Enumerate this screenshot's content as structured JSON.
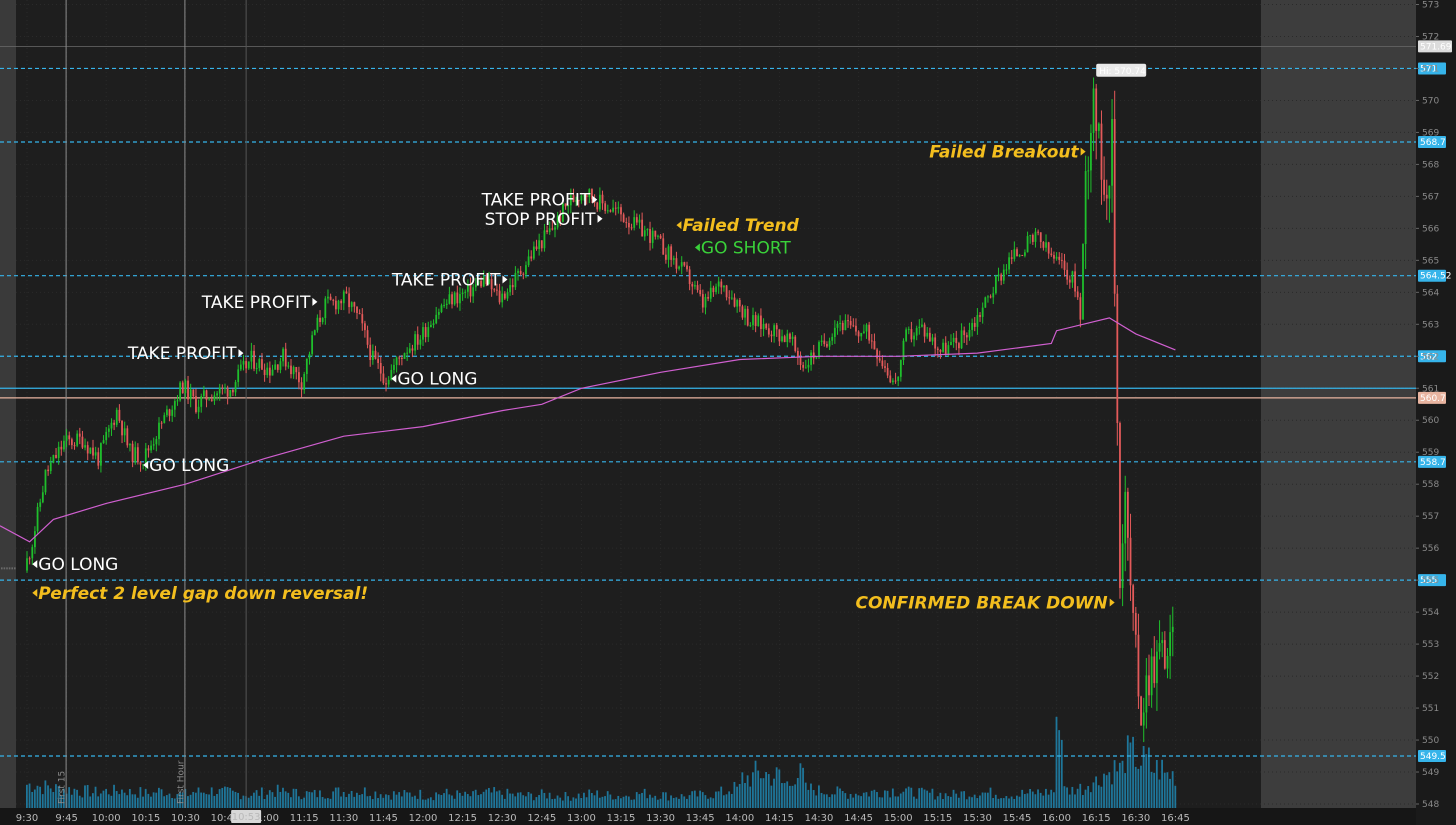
{
  "chart_data": {
    "type": "candlestick",
    "x_tick_labels": [
      "9:30",
      "9:45",
      "10:00",
      "10:15",
      "10:30",
      "10:45",
      "11:00",
      "11:15",
      "11:30",
      "11:45",
      "12:00",
      "12:15",
      "12:30",
      "12:45",
      "13:00",
      "13:15",
      "13:30",
      "13:45",
      "14:00",
      "14:15",
      "14:30",
      "14:45",
      "15:00",
      "15:15",
      "15:30",
      "15:45",
      "16:00",
      "16:15",
      "16:30",
      "16:45"
    ],
    "y_tick_labels": [
      "548",
      "549",
      "550",
      "551",
      "552",
      "553",
      "554",
      "555",
      "556",
      "557",
      "558",
      "559",
      "560",
      "561",
      "562",
      "563",
      "564",
      "565",
      "566",
      "567",
      "568",
      "569",
      "570",
      "571",
      "572",
      "573"
    ],
    "ylim": [
      548,
      573
    ],
    "current_time_label": "10:53",
    "vertical_marker_labels": [
      "First 15",
      "First Hour"
    ],
    "price_path": [
      [
        "9:30",
        555.3
      ],
      [
        "9:33",
        556.2
      ],
      [
        "9:38",
        558.3
      ],
      [
        "9:45",
        559.3
      ],
      [
        "9:52",
        559.4
      ],
      [
        "9:58",
        558.8
      ],
      [
        "10:05",
        560.3
      ],
      [
        "10:10",
        559.0
      ],
      [
        "10:15",
        558.8
      ],
      [
        "10:22",
        559.9
      ],
      [
        "10:30",
        561.1
      ],
      [
        "10:35",
        560.5
      ],
      [
        "10:40",
        560.8
      ],
      [
        "10:48",
        561.0
      ],
      [
        "10:52",
        561.5
      ],
      [
        "10:56",
        561.9
      ],
      [
        "11:03",
        561.6
      ],
      [
        "11:08",
        562.0
      ],
      [
        "11:15",
        561.2
      ],
      [
        "11:20",
        562.8
      ],
      [
        "11:24",
        563.6
      ],
      [
        "11:32",
        563.8
      ],
      [
        "11:37",
        563.1
      ],
      [
        "11:42",
        561.9
      ],
      [
        "11:47",
        561.3
      ],
      [
        "11:54",
        562.2
      ],
      [
        "12:00",
        562.6
      ],
      [
        "12:06",
        563.4
      ],
      [
        "12:12",
        563.8
      ],
      [
        "12:18",
        564.0
      ],
      [
        "12:24",
        564.4
      ],
      [
        "12:30",
        563.8
      ],
      [
        "12:35",
        564.3
      ],
      [
        "12:43",
        565.3
      ],
      [
        "12:50",
        566.0
      ],
      [
        "12:56",
        566.8
      ],
      [
        "13:02",
        567.2
      ],
      [
        "13:08",
        566.8
      ],
      [
        "13:15",
        566.5
      ],
      [
        "13:21",
        566.1
      ],
      [
        "13:27",
        565.8
      ],
      [
        "13:35",
        565.1
      ],
      [
        "13:42",
        564.4
      ],
      [
        "13:47",
        563.6
      ],
      [
        "13:54",
        564.3
      ],
      [
        "14:00",
        563.7
      ],
      [
        "14:05",
        563.1
      ],
      [
        "14:12",
        562.9
      ],
      [
        "14:20",
        562.5
      ],
      [
        "14:25",
        561.7
      ],
      [
        "14:32",
        562.3
      ],
      [
        "14:38",
        563.1
      ],
      [
        "14:44",
        562.8
      ],
      [
        "14:50",
        562.7
      ],
      [
        "14:56",
        561.7
      ],
      [
        "15:00",
        561.1
      ],
      [
        "15:04",
        562.6
      ],
      [
        "15:10",
        562.9
      ],
      [
        "15:17",
        562.2
      ],
      [
        "15:23",
        562.4
      ],
      [
        "15:30",
        563.1
      ],
      [
        "15:36",
        564.0
      ],
      [
        "15:42",
        564.9
      ],
      [
        "15:48",
        565.4
      ],
      [
        "15:54",
        565.7
      ],
      [
        "15:58",
        565.2
      ],
      [
        "16:03",
        564.8
      ],
      [
        "16:08",
        564.3
      ],
      [
        "16:10",
        563.2
      ],
      [
        "16:12",
        567.5
      ],
      [
        "16:15",
        570.5
      ],
      [
        "16:17",
        568.5
      ],
      [
        "16:20",
        567.3
      ],
      [
        "16:22",
        568.7
      ],
      [
        "16:25",
        555.5
      ],
      [
        "16:27",
        557.5
      ],
      [
        "16:30",
        553.5
      ],
      [
        "16:33",
        551.0
      ],
      [
        "16:36",
        552.2
      ],
      [
        "16:40",
        552.8
      ],
      [
        "16:45",
        552.9
      ]
    ],
    "vwap_path": [
      [
        "9:28",
        556.7
      ],
      [
        "9:31",
        556.2
      ],
      [
        "9:40",
        556.9
      ],
      [
        "10:00",
        557.4
      ],
      [
        "10:30",
        558.0
      ],
      [
        "11:00",
        558.8
      ],
      [
        "11:30",
        559.5
      ],
      [
        "12:00",
        559.8
      ],
      [
        "12:30",
        560.3
      ],
      [
        "12:45",
        560.5
      ],
      [
        "13:00",
        561.0
      ],
      [
        "13:30",
        561.5
      ],
      [
        "14:00",
        561.9
      ],
      [
        "14:30",
        562.0
      ],
      [
        "15:00",
        562.0
      ],
      [
        "15:30",
        562.1
      ],
      [
        "15:58",
        562.4
      ],
      [
        "16:00",
        562.8
      ],
      [
        "16:10",
        563.0
      ],
      [
        "16:20",
        563.2
      ],
      [
        "16:30",
        562.7
      ],
      [
        "16:45",
        562.2
      ]
    ],
    "volume_profile": [
      [
        0.42,
        0.38,
        0.35,
        0.33,
        0.3,
        0.28,
        0.3,
        0.32,
        0.28,
        0.26,
        0.3,
        0.27,
        0.25,
        0.29,
        0.31,
        0.28,
        0.26,
        0.24,
        0.27,
        0.3,
        0.28,
        0.26,
        0.25,
        0.27,
        0.29,
        0.31,
        0.3,
        0.27,
        0.25,
        0.24
      ],
      [
        0.25,
        0.23,
        0.26,
        0.24,
        0.22,
        0.25,
        0.27,
        0.25,
        0.23,
        0.22,
        0.24,
        0.22,
        0.21,
        0.23,
        0.25,
        0.23,
        0.22,
        0.24,
        0.26,
        0.24,
        0.22,
        0.21,
        0.23,
        0.25,
        0.28,
        0.35,
        0.55,
        0.62,
        0.58,
        0.44
      ],
      [
        0.6,
        0.34,
        0.31,
        0.28,
        0.26,
        0.27,
        0.29,
        0.32,
        0.31,
        0.28,
        0.26,
        0.25,
        0.24,
        0.26,
        0.28,
        0.27,
        0.25,
        0.24,
        0.26,
        0.28,
        0.3,
        0.32,
        0.36,
        0.48,
        0.62,
        0.7,
        0.95,
        0.84,
        0.7,
        0.6
      ]
    ],
    "price_levels": [
      {
        "value": 571,
        "label": "571",
        "style": "dashed"
      },
      {
        "value": 568.7,
        "label": "568.7",
        "style": "dashed"
      },
      {
        "value": 564.52,
        "label": "564.52",
        "style": "dashed"
      },
      {
        "value": 562,
        "label": "562",
        "style": "dashed"
      },
      {
        "value": 561,
        "label": "",
        "style": "solid"
      },
      {
        "value": 560.7,
        "label": "560.7",
        "style": "solid"
      },
      {
        "value": 558.7,
        "label": "558.7",
        "style": "dashed"
      },
      {
        "value": 555,
        "label": "555",
        "style": "dashed"
      },
      {
        "value": 549.5,
        "label": "549.5",
        "style": "dashed"
      }
    ],
    "prev_close": {
      "value": 571.69,
      "label": "571.69"
    },
    "high_marker": {
      "label": "Hi: 570.74",
      "time": "16:15",
      "value": 570.74
    },
    "annotations": [
      {
        "text": "GO LONG",
        "time": "9:32",
        "value": 555.5,
        "dir": "left",
        "color": "white"
      },
      {
        "text": "Perfect 2 level gap down reversal!",
        "time": "9:32",
        "value": 554.6,
        "dir": "left",
        "color": "yellow"
      },
      {
        "text": "GO LONG",
        "time": "10:14",
        "value": 558.6,
        "dir": "left",
        "color": "white"
      },
      {
        "text": "TAKE PROFIT",
        "time": "10:52",
        "value": 562.1,
        "dir": "right",
        "color": "white"
      },
      {
        "text": "TAKE PROFIT",
        "time": "11:20",
        "value": 563.7,
        "dir": "right",
        "color": "white"
      },
      {
        "text": "GO LONG",
        "time": "11:48",
        "value": 561.3,
        "dir": "left",
        "color": "white"
      },
      {
        "text": "TAKE PROFIT",
        "time": "12:32",
        "value": 564.4,
        "dir": "right",
        "color": "white"
      },
      {
        "text": "TAKE PROFIT",
        "time": "13:06",
        "value": 566.9,
        "dir": "right",
        "color": "white"
      },
      {
        "text": "STOP PROFIT",
        "time": "13:08",
        "value": 566.3,
        "dir": "right",
        "color": "white"
      },
      {
        "text": "Failed Trend",
        "time": "13:36",
        "value": 566.1,
        "dir": "left",
        "color": "yellow"
      },
      {
        "text": "GO SHORT",
        "time": "13:43",
        "value": 565.4,
        "dir": "left",
        "color": "green"
      },
      {
        "text": "Failed Breakout",
        "time": "16:11",
        "value": 568.4,
        "dir": "right",
        "color": "yellow"
      },
      {
        "text": "CONFIRMED BREAK DOWN",
        "time": "16:22",
        "value": 554.3,
        "dir": "right",
        "color": "yellow"
      }
    ],
    "grid": true,
    "colors": {
      "background": "#1e1e1e",
      "up_candle": "#1fbf2c",
      "down_candle": "#e35a5a",
      "vwap": "#d05fd0",
      "level_line": "#36b4ea",
      "volume": "#1f86b0",
      "level_560_7": "#e8b4a0",
      "annotation_white": "#ffffff",
      "annotation_yellow": "#f3be1e",
      "annotation_green": "#3ad13a"
    }
  }
}
